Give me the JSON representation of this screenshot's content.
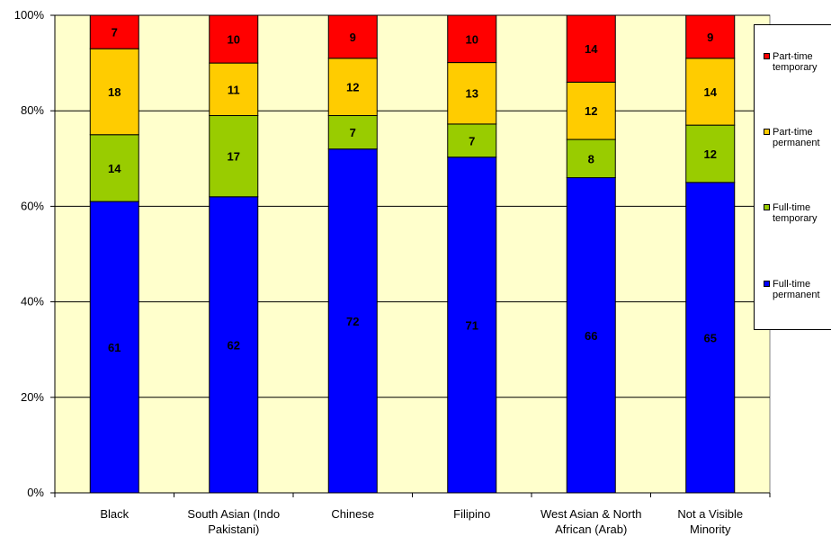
{
  "chart_data": {
    "type": "bar",
    "stacked": true,
    "percent_stacked": true,
    "categories": [
      "Black",
      "South Asian (Indo Pakistani)",
      "Chinese",
      "Filipino",
      "West Asian & North African (Arab)",
      "Not a Visible Minority"
    ],
    "series": [
      {
        "name": "Full-time permanent",
        "color": "#0000ff",
        "values": [
          61,
          62,
          72,
          71,
          66,
          65
        ]
      },
      {
        "name": "Full-time temporary",
        "color": "#99cc00",
        "values": [
          14,
          17,
          7,
          7,
          8,
          12
        ]
      },
      {
        "name": "Part-time permanent",
        "color": "#ffcc00",
        "values": [
          18,
          11,
          12,
          13,
          12,
          14
        ]
      },
      {
        "name": "Part-time temporary",
        "color": "#ff0000",
        "values": [
          7,
          10,
          9,
          10,
          14,
          9
        ]
      }
    ],
    "yticks": [
      "0%",
      "20%",
      "40%",
      "60%",
      "80%",
      "100%"
    ],
    "ylim": [
      0,
      100
    ],
    "title": "",
    "xlabel": "",
    "ylabel": "",
    "grid": true,
    "legend_position": "right",
    "plot_background": "#ffffcc"
  },
  "legend": {
    "items": [
      {
        "label": "Part-time\ntemporary",
        "color": "#ff0000"
      },
      {
        "label": "Part-time\npermanent",
        "color": "#ffcc00"
      },
      {
        "label": "Full-time\ntemporary",
        "color": "#99cc00"
      },
      {
        "label": "Full-time\npermanent",
        "color": "#0000ff"
      }
    ]
  }
}
